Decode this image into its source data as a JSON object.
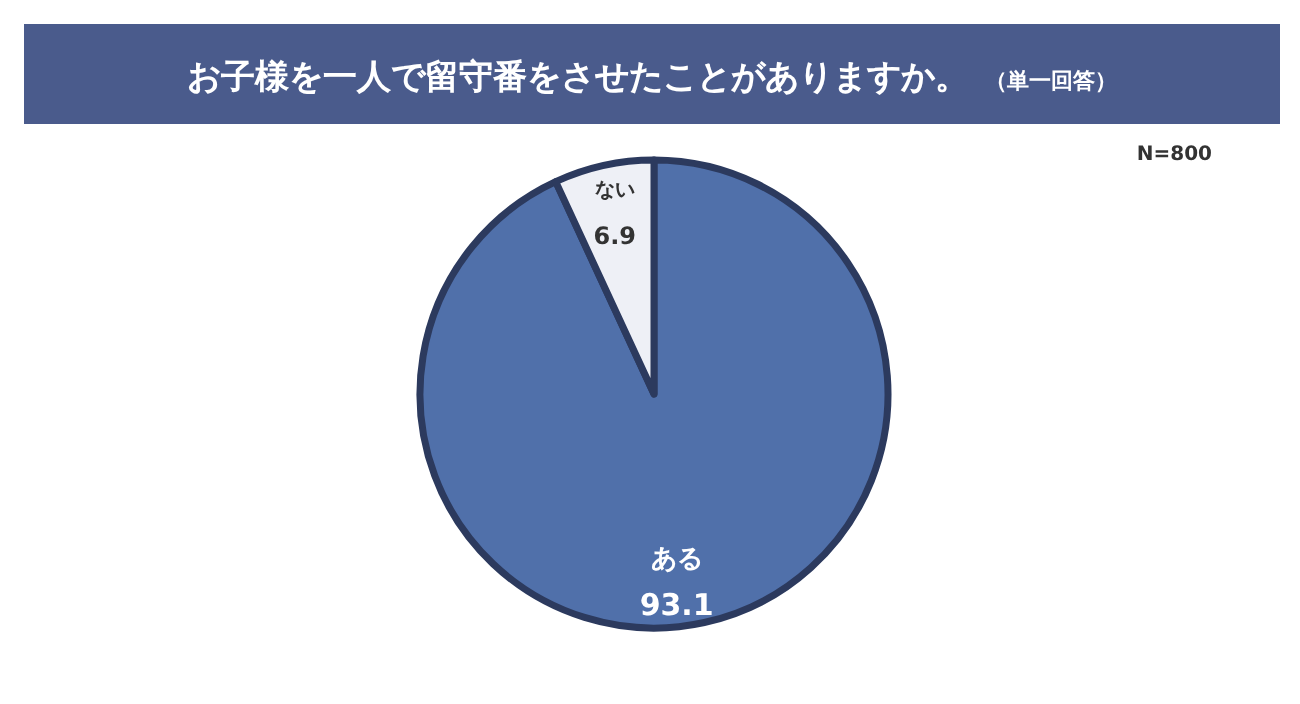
{
  "chart_data": {
    "type": "pie",
    "title": "お子様を一人で留守番をさせたことがありますか。",
    "subtitle": "（単一回答）",
    "annotations": [
      "N=800"
    ],
    "categories": [
      "ある",
      "ない"
    ],
    "values": [
      93.1,
      6.9
    ],
    "colors": [
      "#5070aa",
      "#eef0f6"
    ],
    "data_labels": true
  }
}
